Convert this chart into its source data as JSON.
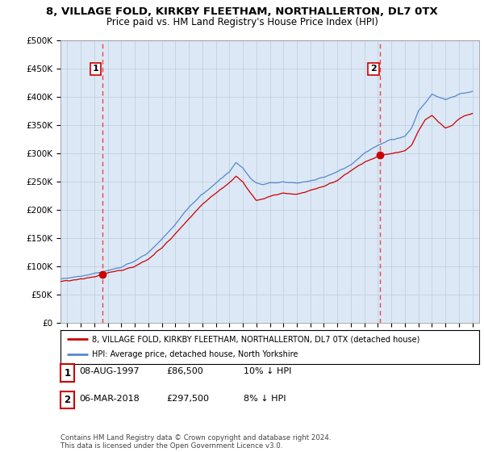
{
  "title_line1": "8, VILLAGE FOLD, KIRKBY FLEETHAM, NORTHALLERTON, DL7 0TX",
  "title_line2": "Price paid vs. HM Land Registry's House Price Index (HPI)",
  "yticks": [
    0,
    50000,
    100000,
    150000,
    200000,
    250000,
    300000,
    350000,
    400000,
    450000,
    500000
  ],
  "ytick_labels": [
    "£0",
    "£50K",
    "£100K",
    "£150K",
    "£200K",
    "£250K",
    "£300K",
    "£350K",
    "£400K",
    "£450K",
    "£500K"
  ],
  "sale1": {
    "date_num": 1997.6,
    "price": 86500,
    "label": "1",
    "date_str": "08-AUG-1997",
    "price_str": "£86,500",
    "hpi_diff": "10% ↓ HPI"
  },
  "sale2": {
    "date_num": 2018.17,
    "price": 297500,
    "label": "2",
    "date_str": "06-MAR-2018",
    "price_str": "£297,500",
    "hpi_diff": "8% ↓ HPI"
  },
  "legend_label_red": "8, VILLAGE FOLD, KIRKBY FLEETHAM, NORTHALLERTON, DL7 0TX (detached house)",
  "legend_label_blue": "HPI: Average price, detached house, North Yorkshire",
  "footer": "Contains HM Land Registry data © Crown copyright and database right 2024.\nThis data is licensed under the Open Government Licence v3.0.",
  "bg_color": "#ffffff",
  "plot_bg_color": "#dce8f5",
  "red_color": "#cc0000",
  "blue_color": "#5588cc",
  "dashed_color": "#ee3333",
  "xmin": 1994.5,
  "xmax": 2025.5,
  "ymin": 0,
  "ymax": 500000,
  "hpi_key_years": [
    1994,
    1995,
    1996,
    1997,
    1998,
    1999,
    2000,
    2001,
    2002,
    2003,
    2004,
    2005,
    2006,
    2007,
    2007.5,
    2008,
    2008.5,
    2009,
    2009.5,
    2010,
    2011,
    2012,
    2013,
    2014,
    2015,
    2016,
    2017,
    2018,
    2019,
    2020,
    2020.5,
    2021,
    2021.5,
    2022,
    2022.5,
    2023,
    2023.5,
    2024,
    2024.5,
    2025
  ],
  "hpi_key_vals": [
    78000,
    80000,
    83000,
    88000,
    93000,
    99000,
    110000,
    125000,
    148000,
    175000,
    205000,
    228000,
    248000,
    268000,
    285000,
    275000,
    258000,
    248000,
    245000,
    248000,
    250000,
    248000,
    252000,
    258000,
    268000,
    280000,
    300000,
    315000,
    325000,
    330000,
    345000,
    375000,
    390000,
    405000,
    400000,
    395000,
    400000,
    405000,
    408000,
    410000
  ],
  "prop_key_years": [
    1994,
    1995,
    1996,
    1997,
    1997.6,
    1998,
    1999,
    2000,
    2001,
    2002,
    2003,
    2004,
    2005,
    2006,
    2007,
    2007.5,
    2008,
    2008.5,
    2009,
    2009.5,
    2010,
    2011,
    2012,
    2013,
    2014,
    2015,
    2016,
    2017,
    2018,
    2018.17,
    2019,
    2020,
    2020.5,
    2021,
    2021.5,
    2022,
    2022.5,
    2023,
    2023.5,
    2024,
    2024.5,
    2025
  ],
  "prop_key_vals": [
    72000,
    75000,
    78000,
    82000,
    86500,
    90000,
    93000,
    100000,
    113000,
    133000,
    158000,
    185000,
    210000,
    230000,
    248000,
    260000,
    250000,
    232000,
    218000,
    220000,
    225000,
    230000,
    228000,
    235000,
    242000,
    253000,
    270000,
    285000,
    295000,
    297500,
    300000,
    305000,
    315000,
    340000,
    360000,
    368000,
    355000,
    345000,
    350000,
    362000,
    368000,
    372000
  ]
}
